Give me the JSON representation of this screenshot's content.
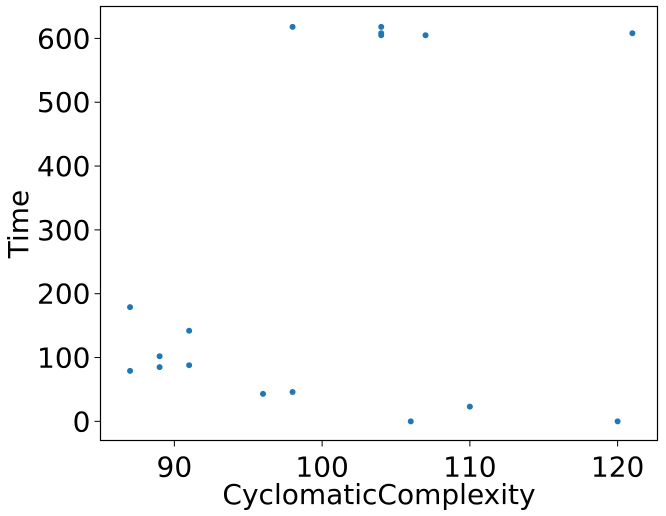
{
  "chart_data": {
    "type": "scatter",
    "title": "",
    "xlabel": "CyclomaticComplexity",
    "ylabel": "Time",
    "xlim": [
      85,
      122.7
    ],
    "ylim": [
      -30,
      650
    ],
    "xticks": [
      90,
      100,
      110,
      120
    ],
    "yticks": [
      0,
      100,
      200,
      300,
      400,
      500,
      600
    ],
    "xtick_labels": [
      "90",
      "100",
      "110",
      "120"
    ],
    "ytick_labels": [
      "0",
      "100",
      "200",
      "300",
      "400",
      "500",
      "600"
    ],
    "grid": false,
    "legend": "none",
    "point_color": "#1f77b4",
    "series": [
      {
        "points": [
          {
            "x": 87,
            "y": 179
          },
          {
            "x": 87,
            "y": 79
          },
          {
            "x": 89,
            "y": 102
          },
          {
            "x": 89,
            "y": 85
          },
          {
            "x": 91,
            "y": 142
          },
          {
            "x": 91,
            "y": 88
          },
          {
            "x": 96,
            "y": 43
          },
          {
            "x": 98,
            "y": 618
          },
          {
            "x": 98,
            "y": 46
          },
          {
            "x": 104,
            "y": 618
          },
          {
            "x": 104,
            "y": 608
          },
          {
            "x": 104,
            "y": 605
          },
          {
            "x": 106,
            "y": 0
          },
          {
            "x": 107,
            "y": 605
          },
          {
            "x": 110,
            "y": 23
          },
          {
            "x": 120,
            "y": 0
          },
          {
            "x": 121,
            "y": 608
          }
        ]
      }
    ]
  }
}
